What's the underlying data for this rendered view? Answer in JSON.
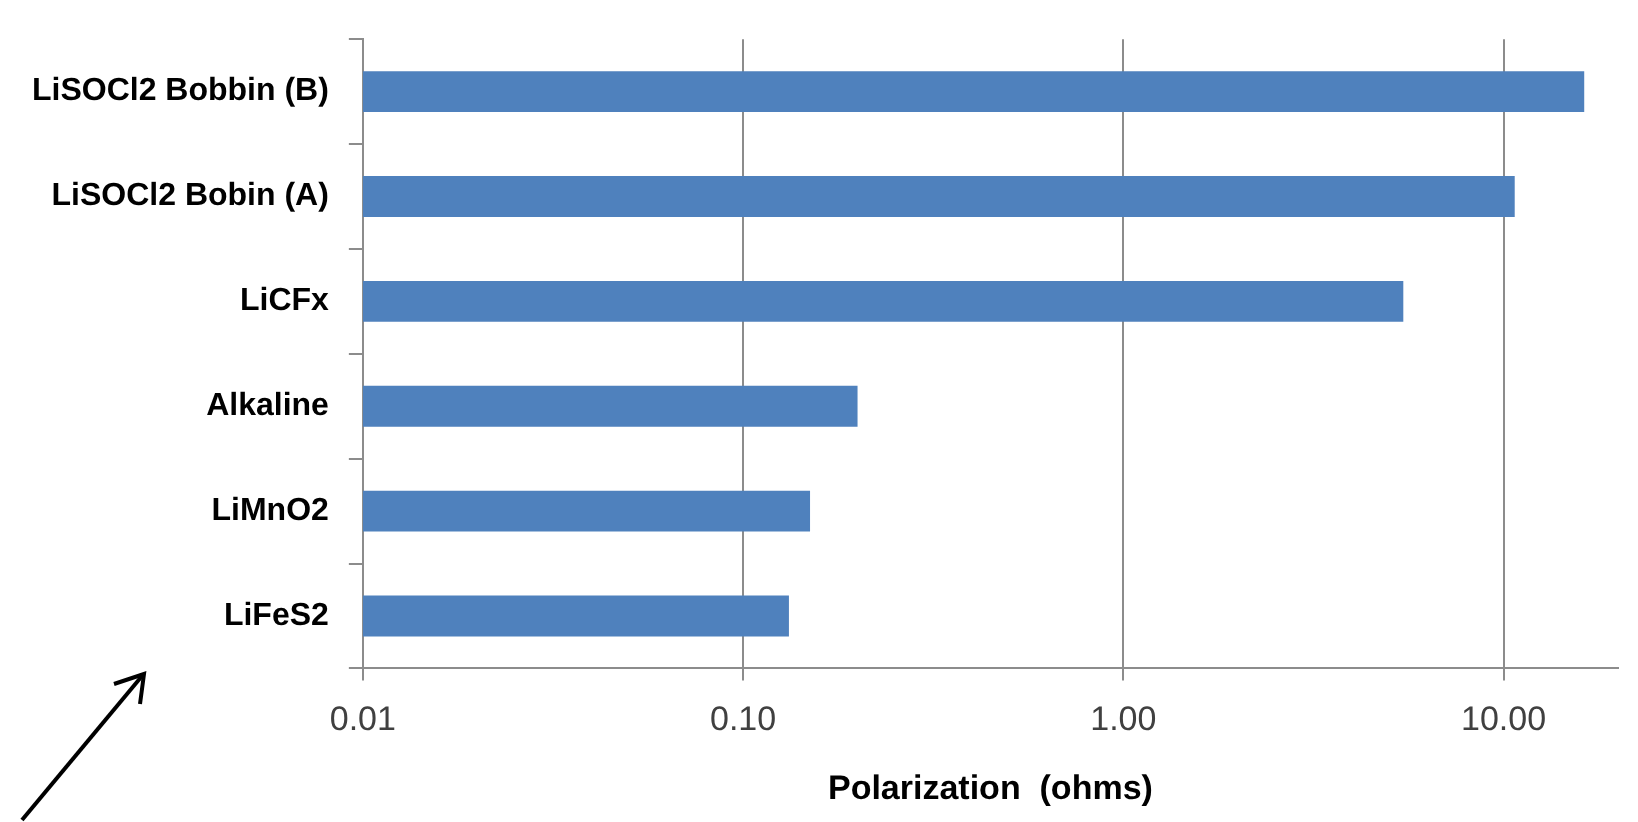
{
  "chart_data": {
    "type": "bar",
    "orientation": "horizontal",
    "xlabel": "Polarization  (ohms)",
    "categories": [
      "LiSOCl2 Bobbin (B)",
      "LiSOCl2 Bobin (A)",
      "LiCFx",
      "Alkaline",
      "LiMnO2",
      "LiFeS2"
    ],
    "values": [
      16.3,
      10.7,
      5.45,
      0.2,
      0.15,
      0.132
    ],
    "color": "#4f81bd",
    "log": "x",
    "xlim": [
      0.01,
      20
    ],
    "xticks": [
      0.01,
      {
        "value": 0.1,
        "label": "0.10"
      },
      {
        "value": 1,
        "label": "1.00"
      },
      {
        "value": 10,
        "label": "10.00"
      }
    ],
    "grid": "x",
    "legend": false
  }
}
